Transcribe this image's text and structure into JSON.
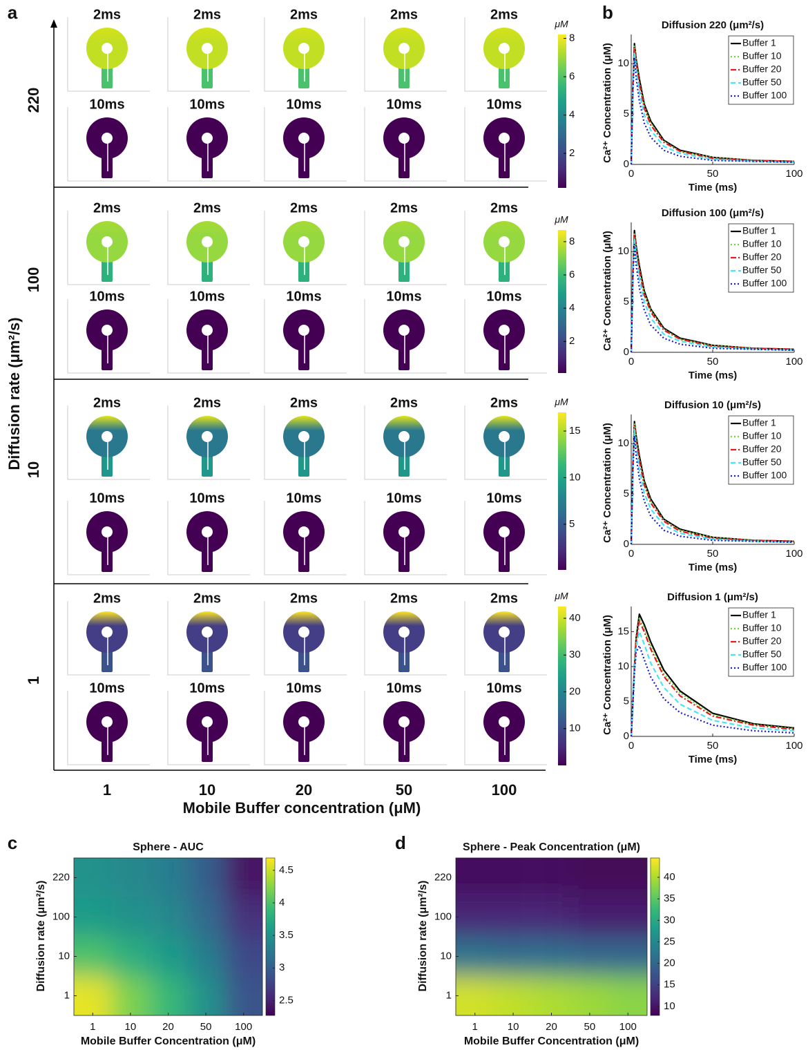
{
  "panel_labels": [
    "a",
    "b",
    "c",
    "d"
  ],
  "panel_a": {
    "time_labels": [
      "2ms",
      "10ms"
    ],
    "x_title": "Mobile Buffer concentration  (μM)",
    "y_title": "Diffusion rate (μm²/s)",
    "columns": [
      "1",
      "10",
      "20",
      "50",
      "100"
    ],
    "colorbar_unit": "μM",
    "rows": [
      {
        "label": "220",
        "clim": [
          0.2,
          8.2
        ],
        "cticks": [
          2,
          4,
          6,
          8
        ]
      },
      {
        "label": "100",
        "clim": [
          0.1,
          8.7
        ],
        "cticks": [
          2,
          4,
          6,
          8
        ]
      },
      {
        "label": "10",
        "clim": [
          0.1,
          17
        ],
        "cticks": [
          5,
          10,
          15
        ]
      },
      {
        "label": "1",
        "clim": [
          0,
          43.2
        ],
        "cticks": [
          10,
          20,
          30,
          40
        ]
      }
    ]
  },
  "chart_data": [
    {
      "type": "line",
      "title": "Diffusion 220 (μm²/s)",
      "x_label": "Time (ms)",
      "y_label": "Ca²⁺ Concentration (μM)",
      "x": [
        0,
        1,
        2,
        3,
        5,
        8,
        12,
        20,
        30,
        50,
        75,
        100
      ],
      "series": [
        {
          "name": "Buffer 1",
          "color": "#000000",
          "line_style": "solid",
          "values": [
            0,
            8,
            12,
            10.5,
            8.5,
            6,
            4.3,
            2.4,
            1.4,
            0.7,
            0.4,
            0.3
          ]
        },
        {
          "name": "Buffer 10",
          "color": "#66dd33",
          "line_style": "dotted",
          "values": [
            0,
            7.9,
            11.8,
            10.3,
            8.2,
            5.8,
            4.1,
            2.3,
            1.3,
            0.7,
            0.4,
            0.3
          ]
        },
        {
          "name": "Buffer 20",
          "color": "#e8191c",
          "line_style": "dashdot",
          "values": [
            0,
            7.8,
            11.6,
            10,
            8,
            5.6,
            3.9,
            2.2,
            1.3,
            0.6,
            0.4,
            0.3
          ]
        },
        {
          "name": "Buffer 50",
          "color": "#44e6f0",
          "line_style": "dashed",
          "values": [
            0,
            7.6,
            11.2,
            9.4,
            7.2,
            4.9,
            3.4,
            1.8,
            1.1,
            0.5,
            0.3,
            0.2
          ]
        },
        {
          "name": "Buffer 100",
          "color": "#1a1acc",
          "line_style": "dotted",
          "values": [
            0,
            7.3,
            10.6,
            8.6,
            6.3,
            4.1,
            2.7,
            1.4,
            0.8,
            0.4,
            0.3,
            0.2
          ]
        }
      ],
      "xlim": [
        0,
        100
      ],
      "ylim": [
        0,
        12.9
      ],
      "xticks": [
        0,
        50,
        100
      ],
      "yticks": [
        0,
        5,
        10
      ],
      "legend": "upper right"
    },
    {
      "type": "line",
      "title": "Diffusion 100 (μm²/s)",
      "x_label": "Time (ms)",
      "y_label": "Ca²⁺ Concentration (μM)",
      "x": [
        0,
        1,
        2,
        3,
        5,
        8,
        12,
        20,
        30,
        50,
        75,
        100
      ],
      "series": [
        {
          "name": "Buffer 1",
          "color": "#000000",
          "line_style": "solid",
          "values": [
            0,
            8,
            12.1,
            10.6,
            8.6,
            6.1,
            4.3,
            2.4,
            1.4,
            0.7,
            0.4,
            0.3
          ]
        },
        {
          "name": "Buffer 10",
          "color": "#66dd33",
          "line_style": "dotted",
          "values": [
            0,
            7.9,
            11.9,
            10.4,
            8.3,
            5.9,
            4.2,
            2.3,
            1.3,
            0.7,
            0.4,
            0.3
          ]
        },
        {
          "name": "Buffer 20",
          "color": "#e8191c",
          "line_style": "dashdot",
          "values": [
            0,
            7.8,
            11.7,
            10.1,
            8.1,
            5.7,
            4,
            2.2,
            1.3,
            0.6,
            0.4,
            0.3
          ]
        },
        {
          "name": "Buffer 50",
          "color": "#44e6f0",
          "line_style": "dashed",
          "values": [
            0,
            7.6,
            11.3,
            9.5,
            7.3,
            5,
            3.4,
            1.8,
            1.1,
            0.5,
            0.3,
            0.2
          ]
        },
        {
          "name": "Buffer 100",
          "color": "#1a1acc",
          "line_style": "dotted",
          "values": [
            0,
            7.3,
            10.7,
            8.7,
            6.4,
            4.2,
            2.7,
            1.4,
            0.8,
            0.4,
            0.3,
            0.2
          ]
        }
      ],
      "xlim": [
        0,
        100
      ],
      "ylim": [
        0,
        12.9
      ],
      "xticks": [
        0,
        50,
        100
      ],
      "yticks": [
        0,
        5,
        10
      ],
      "legend": "upper right"
    },
    {
      "type": "line",
      "title": "Diffusion 10 (μm²/s)",
      "x_label": "Time (ms)",
      "y_label": "Ca²⁺ Concentration (μM)",
      "x": [
        0,
        1,
        2,
        3,
        5,
        8,
        12,
        20,
        30,
        50,
        75,
        100
      ],
      "series": [
        {
          "name": "Buffer 1",
          "color": "#000000",
          "line_style": "solid",
          "values": [
            0,
            8,
            12.2,
            10.8,
            8.8,
            6.3,
            4.5,
            2.5,
            1.5,
            0.7,
            0.4,
            0.3
          ]
        },
        {
          "name": "Buffer 10",
          "color": "#66dd33",
          "line_style": "dotted",
          "values": [
            0,
            7.9,
            12,
            10.6,
            8.5,
            6.1,
            4.3,
            2.4,
            1.4,
            0.7,
            0.4,
            0.3
          ]
        },
        {
          "name": "Buffer 20",
          "color": "#e8191c",
          "line_style": "dashdot",
          "values": [
            0,
            7.8,
            11.8,
            10.3,
            8.3,
            5.9,
            4.1,
            2.3,
            1.3,
            0.6,
            0.4,
            0.3
          ]
        },
        {
          "name": "Buffer 50",
          "color": "#44e6f0",
          "line_style": "dashed",
          "values": [
            0,
            7.6,
            11.4,
            9.6,
            7.4,
            5.1,
            3.5,
            1.9,
            1.1,
            0.5,
            0.3,
            0.2
          ]
        },
        {
          "name": "Buffer 100",
          "color": "#1a1acc",
          "line_style": "dotted",
          "values": [
            0,
            7.3,
            10.8,
            8.8,
            6.5,
            4.3,
            2.8,
            1.4,
            0.8,
            0.4,
            0.3,
            0.2
          ]
        }
      ],
      "xlim": [
        0,
        100
      ],
      "ylim": [
        0,
        12.9
      ],
      "xticks": [
        0,
        50,
        100
      ],
      "yticks": [
        0,
        5,
        10
      ],
      "legend": "upper right"
    },
    {
      "type": "line",
      "title": "Diffusion 1 (μm²/s)",
      "x_label": "Time (ms)",
      "y_label": "Ca²⁺ Concentration (μM)",
      "x": [
        0,
        1,
        2,
        3,
        5,
        8,
        12,
        20,
        30,
        50,
        75,
        100
      ],
      "series": [
        {
          "name": "Buffer 1",
          "color": "#000000",
          "line_style": "solid",
          "values": [
            0,
            5,
            10,
            14,
            17.5,
            16,
            13.5,
            9.5,
            6.5,
            3.3,
            1.8,
            1.2
          ]
        },
        {
          "name": "Buffer 10",
          "color": "#66dd33",
          "line_style": "dotted",
          "values": [
            0,
            5,
            10,
            13.8,
            17,
            15.5,
            13,
            9,
            6.2,
            3.1,
            1.7,
            1.1
          ]
        },
        {
          "name": "Buffer 20",
          "color": "#e8191c",
          "line_style": "dashdot",
          "values": [
            0,
            4.9,
            9.8,
            13.5,
            16.5,
            15,
            12.5,
            8.6,
            5.8,
            2.9,
            1.6,
            1
          ]
        },
        {
          "name": "Buffer 50",
          "color": "#44e6f0",
          "line_style": "dashed",
          "values": [
            0,
            4.8,
            9.5,
            12.8,
            15,
            13.2,
            10.5,
            7,
            4.6,
            2.3,
            1.2,
            0.8
          ]
        },
        {
          "name": "Buffer 100",
          "color": "#1a1acc",
          "line_style": "dotted",
          "values": [
            0,
            4.7,
            9.2,
            12,
            13,
            11,
            8.5,
            5.4,
            3.4,
            1.6,
            0.8,
            0.5
          ]
        }
      ],
      "xlim": [
        0,
        100
      ],
      "ylim": [
        0,
        18.6
      ],
      "xticks": [
        0,
        50,
        100
      ],
      "yticks": [
        0,
        5,
        10,
        15
      ],
      "legend": "upper right"
    },
    {
      "type": "heatmap",
      "title": "Sphere - AUC",
      "x_label": "Mobile Buffer Concentration (μM)",
      "y_label": "Diffusion rate (μm²/s)",
      "x_categories": [
        "1",
        "10",
        "20",
        "50",
        "100"
      ],
      "y_categories": [
        "1",
        "10",
        "100",
        "220"
      ],
      "z": [
        [
          4.6,
          4.2,
          3.9,
          3.5,
          2.9
        ],
        [
          4.0,
          3.8,
          3.6,
          3.3,
          2.8
        ],
        [
          3.6,
          3.5,
          3.4,
          3.1,
          2.6
        ],
        [
          3.5,
          3.4,
          3.3,
          3.0,
          2.4
        ]
      ],
      "clim": [
        2.27,
        4.69
      ],
      "cticks": [
        2.5,
        3,
        3.5,
        4,
        4.5
      ],
      "colormap": "viridis"
    },
    {
      "type": "heatmap",
      "title": "Sphere - Peak Concentration (μM)",
      "x_label": "Mobile Buffer Concentration (μM)",
      "y_label": "Diffusion rate (μm²/s)",
      "x_categories": [
        "1",
        "10",
        "20",
        "50",
        "100"
      ],
      "y_categories": [
        "1",
        "10",
        "100",
        "220"
      ],
      "z": [
        [
          42,
          41,
          40,
          39,
          38
        ],
        [
          22,
          21,
          21,
          20,
          20
        ],
        [
          12,
          12,
          12,
          11,
          11
        ],
        [
          9,
          9,
          9,
          8.5,
          8.5
        ]
      ],
      "clim": [
        7.9,
        44.5
      ],
      "cticks": [
        10,
        15,
        20,
        25,
        30,
        35,
        40
      ],
      "colormap": "viridis"
    }
  ]
}
